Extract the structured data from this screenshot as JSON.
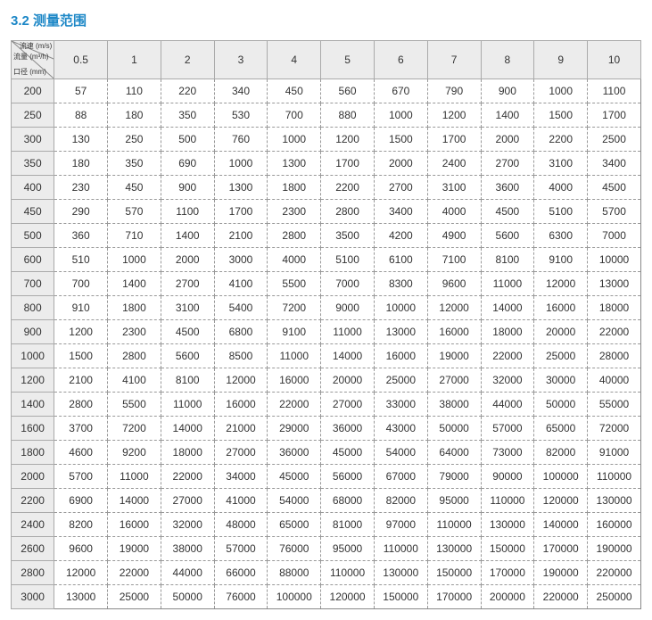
{
  "title": "3.2 测量范围",
  "corner": {
    "top": "流速\n(m/s)",
    "left": "流量\n(m³/h)",
    "bottom": "口径\n(mm)"
  },
  "table": {
    "type": "table",
    "columns": [
      "0.5",
      "1",
      "2",
      "3",
      "4",
      "5",
      "6",
      "7",
      "8",
      "9",
      "10"
    ],
    "row_headers": [
      "200",
      "250",
      "300",
      "350",
      "400",
      "450",
      "500",
      "600",
      "700",
      "800",
      "900",
      "1000",
      "1200",
      "1400",
      "1600",
      "1800",
      "2000",
      "2200",
      "2400",
      "2600",
      "2800",
      "3000"
    ],
    "rows": [
      [
        "57",
        "110",
        "220",
        "340",
        "450",
        "560",
        "670",
        "790",
        "900",
        "1000",
        "1100"
      ],
      [
        "88",
        "180",
        "350",
        "530",
        "700",
        "880",
        "1000",
        "1200",
        "1400",
        "1500",
        "1700"
      ],
      [
        "130",
        "250",
        "500",
        "760",
        "1000",
        "1200",
        "1500",
        "1700",
        "2000",
        "2200",
        "2500"
      ],
      [
        "180",
        "350",
        "690",
        "1000",
        "1300",
        "1700",
        "2000",
        "2400",
        "2700",
        "3100",
        "3400"
      ],
      [
        "230",
        "450",
        "900",
        "1300",
        "1800",
        "2200",
        "2700",
        "3100",
        "3600",
        "4000",
        "4500"
      ],
      [
        "290",
        "570",
        "1100",
        "1700",
        "2300",
        "2800",
        "3400",
        "4000",
        "4500",
        "5100",
        "5700"
      ],
      [
        "360",
        "710",
        "1400",
        "2100",
        "2800",
        "3500",
        "4200",
        "4900",
        "5600",
        "6300",
        "7000"
      ],
      [
        "510",
        "1000",
        "2000",
        "3000",
        "4000",
        "5100",
        "6100",
        "7100",
        "8100",
        "9100",
        "10000"
      ],
      [
        "700",
        "1400",
        "2700",
        "4100",
        "5500",
        "7000",
        "8300",
        "9600",
        "11000",
        "12000",
        "13000"
      ],
      [
        "910",
        "1800",
        "3100",
        "5400",
        "7200",
        "9000",
        "10000",
        "12000",
        "14000",
        "16000",
        "18000"
      ],
      [
        "1200",
        "2300",
        "4500",
        "6800",
        "9100",
        "11000",
        "13000",
        "16000",
        "18000",
        "20000",
        "22000"
      ],
      [
        "1500",
        "2800",
        "5600",
        "8500",
        "11000",
        "14000",
        "16000",
        "19000",
        "22000",
        "25000",
        "28000"
      ],
      [
        "2100",
        "4100",
        "8100",
        "12000",
        "16000",
        "20000",
        "25000",
        "27000",
        "32000",
        "30000",
        "40000"
      ],
      [
        "2800",
        "5500",
        "11000",
        "16000",
        "22000",
        "27000",
        "33000",
        "38000",
        "44000",
        "50000",
        "55000"
      ],
      [
        "3700",
        "7200",
        "14000",
        "21000",
        "29000",
        "36000",
        "43000",
        "50000",
        "57000",
        "65000",
        "72000"
      ],
      [
        "4600",
        "9200",
        "18000",
        "27000",
        "36000",
        "45000",
        "54000",
        "64000",
        "73000",
        "82000",
        "91000"
      ],
      [
        "5700",
        "11000",
        "22000",
        "34000",
        "45000",
        "56000",
        "67000",
        "79000",
        "90000",
        "100000",
        "110000"
      ],
      [
        "6900",
        "14000",
        "27000",
        "41000",
        "54000",
        "68000",
        "82000",
        "95000",
        "110000",
        "120000",
        "130000"
      ],
      [
        "8200",
        "16000",
        "32000",
        "48000",
        "65000",
        "81000",
        "97000",
        "110000",
        "130000",
        "140000",
        "160000"
      ],
      [
        "9600",
        "19000",
        "38000",
        "57000",
        "76000",
        "95000",
        "110000",
        "130000",
        "150000",
        "170000",
        "190000"
      ],
      [
        "12000",
        "22000",
        "44000",
        "66000",
        "88000",
        "110000",
        "130000",
        "150000",
        "170000",
        "190000",
        "220000"
      ],
      [
        "13000",
        "25000",
        "50000",
        "76000",
        "100000",
        "120000",
        "150000",
        "170000",
        "200000",
        "220000",
        "250000"
      ]
    ],
    "header_bg": "#ececec",
    "cell_bg": "#ffffff",
    "border_dash_color": "#999999",
    "border_solid_color": "#aaaaaa",
    "title_color": "#1e88c7",
    "font_size_body": 12,
    "font_size_title": 15
  }
}
